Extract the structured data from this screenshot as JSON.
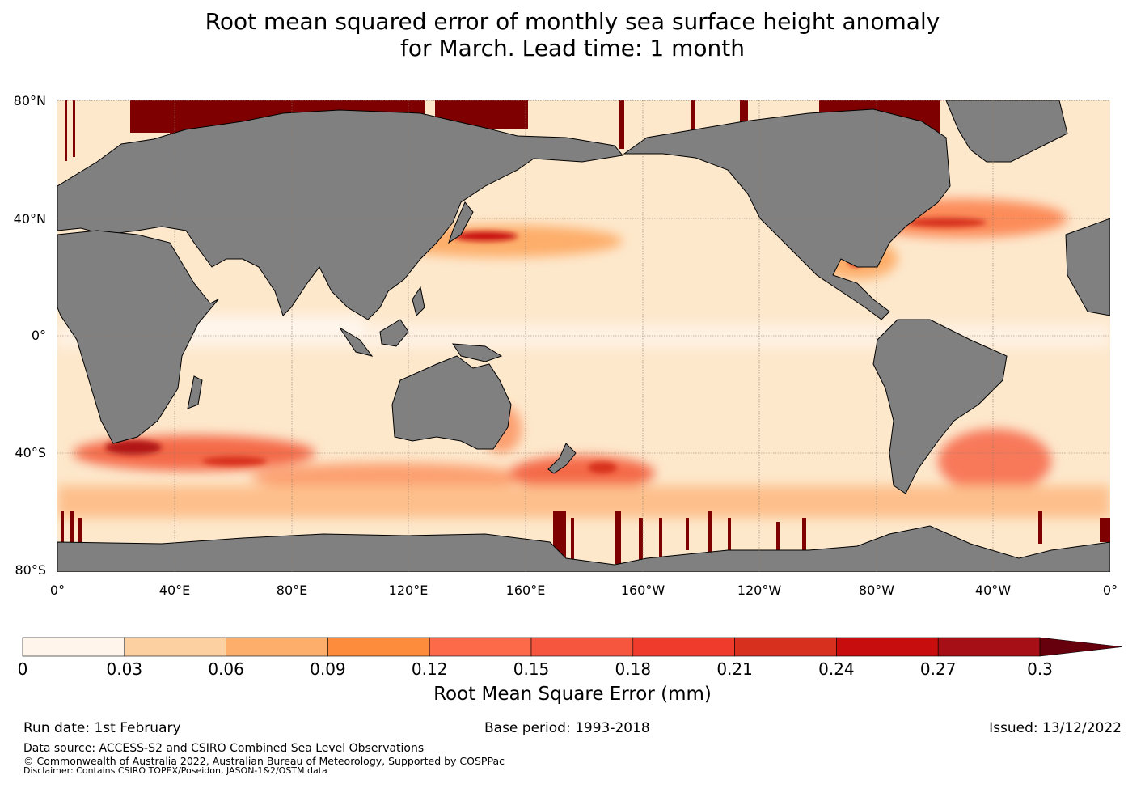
{
  "header": {
    "title_line1": "Root mean squared error of monthly sea surface height anomaly",
    "title_line2": "for March. Lead time: 1 month"
  },
  "map": {
    "lat_labels": [
      "80°N",
      "40°N",
      "0°",
      "40°S",
      "80°S"
    ],
    "lon_labels": [
      "0°",
      "40°E",
      "80°E",
      "120°E",
      "160°E",
      "160°W",
      "120°W",
      "80°W",
      "40°W",
      "0°"
    ],
    "colors": {
      "land": "#808080",
      "ocean_base": "#fde8cc",
      "ice_high": "#7f0000",
      "gridline": "#8c7a6a"
    }
  },
  "colorbar": {
    "ticks": [
      "0",
      "0.03",
      "0.06",
      "0.09",
      "0.12",
      "0.15",
      "0.18",
      "0.21",
      "0.24",
      "0.27",
      "0.3"
    ],
    "colors": [
      "#fff5eb",
      "#fee6ce",
      "#fdd0a2",
      "#fdae6b",
      "#fd8d3c",
      "#fc6a4a",
      "#f6553e",
      "#ef3b2c",
      "#d7301f",
      "#c70d0d",
      "#a50f15"
    ],
    "extend_color": "#67000d",
    "label": "Root Mean Square Error (mm)"
  },
  "footer": {
    "run_date": "Run date: 1st February",
    "base_period": "Base period: 1993-2018",
    "issued": "Issued: 13/12/2022",
    "data_source": "Data source: ACCESS-S2 and CSIRO Combined Sea Level Observations",
    "copyright": "© Commonwealth of Australia 2022, Australian Bureau of Meteorology, Supported by COSPPac",
    "disclaimer": "Disclaimer: Contains CSIRO TOPEX/Poseidon, JASON-1&2/OSTM data"
  }
}
